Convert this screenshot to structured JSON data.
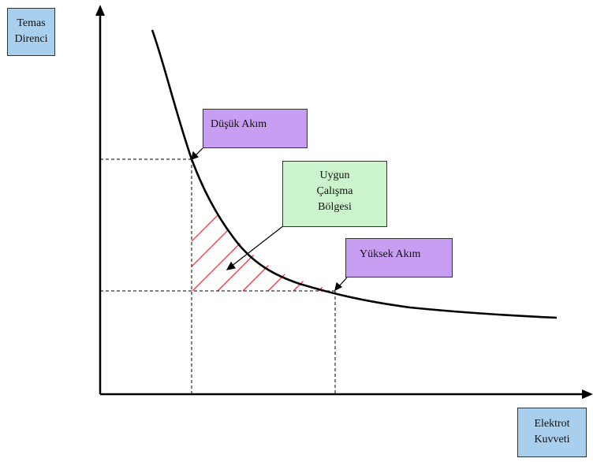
{
  "axes": {
    "y_label": [
      "Temas",
      "Direnci"
    ],
    "x_label": [
      "Elektrot",
      "Kuvveti"
    ]
  },
  "callouts": {
    "low_current": "Düşük Akım",
    "operating_zone": [
      "Uygun",
      "Çalışma",
      "Bölgesi"
    ],
    "high_current": "Yüksek Akım"
  },
  "colors": {
    "axis_box": "#a9cfee",
    "current_box": "#c89ef2",
    "zone_box": "#ccf4cc",
    "hatch": "#ff3333",
    "curve": "#000000"
  }
}
